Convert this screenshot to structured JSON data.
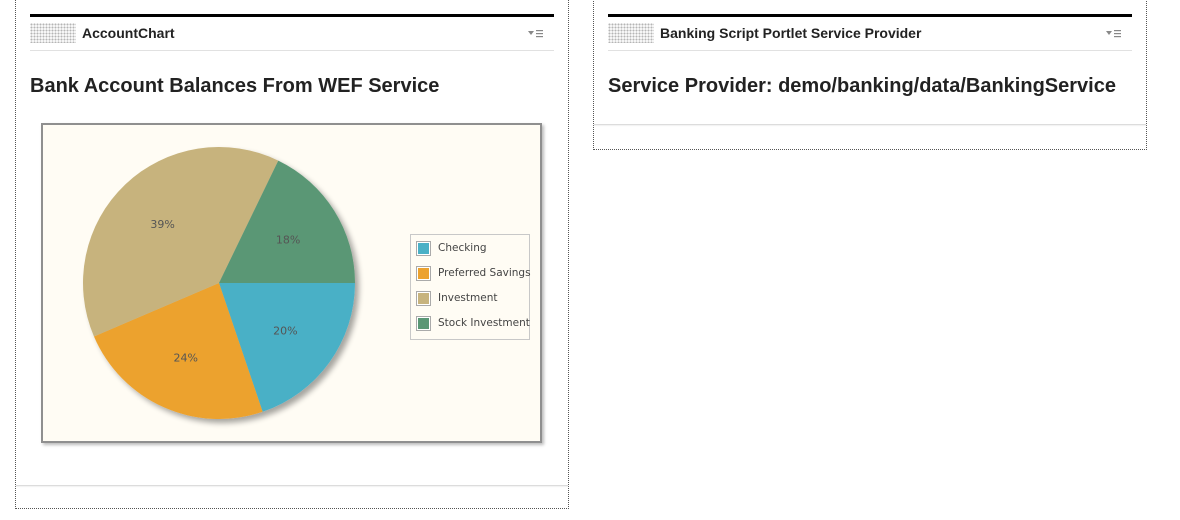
{
  "left_portlet": {
    "title": "AccountChart",
    "heading": "Bank Account Balances From WEF Service",
    "menu_icon": "menu-icon"
  },
  "right_portlet": {
    "title": "Banking Script Portlet Service Provider",
    "heading": "Service Provider: demo/banking/data/BankingService",
    "menu_icon": "menu-icon"
  },
  "chart_data": {
    "type": "pie",
    "title": "",
    "legend_position": "right",
    "series": [
      {
        "name": "Checking",
        "value": 20,
        "label": "20%",
        "color": "#4ab0c6"
      },
      {
        "name": "Preferred Savings",
        "value": 24,
        "label": "24%",
        "color": "#eca22f"
      },
      {
        "name": "Investment",
        "value": 39,
        "label": "39%",
        "color": "#c7b37d"
      },
      {
        "name": "Stock Investment",
        "value": 18,
        "label": "18%",
        "color": "#5a9775"
      }
    ]
  }
}
